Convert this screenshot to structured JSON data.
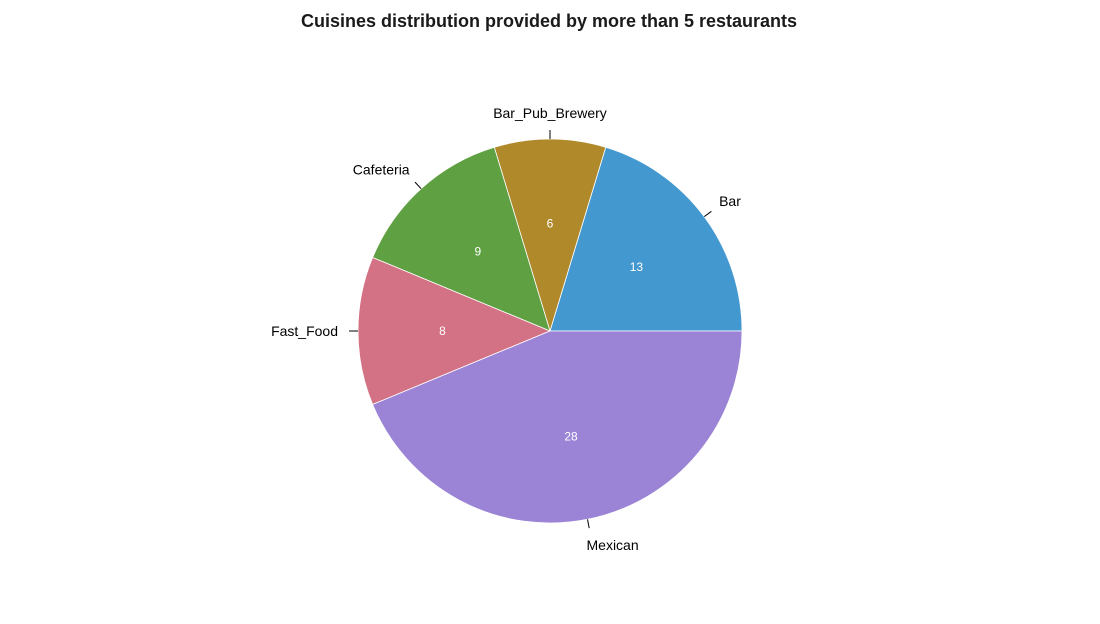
{
  "chart_data": {
    "type": "pie",
    "title": "Cuisines distribution provided by more than 5 restaurants",
    "slices": [
      {
        "label": "Bar",
        "value": 13,
        "color": "#4398CF"
      },
      {
        "label": "Bar_Pub_Brewery",
        "value": 6,
        "color": "#B0892B"
      },
      {
        "label": "Cafeteria",
        "value": 9,
        "color": "#5FA042"
      },
      {
        "label": "Fast_Food",
        "value": 8,
        "color": "#D37284"
      },
      {
        "label": "Mexican",
        "value": 28,
        "color": "#9B83D5"
      }
    ],
    "start_angle_deg": 0,
    "direction": "counterclockwise"
  }
}
